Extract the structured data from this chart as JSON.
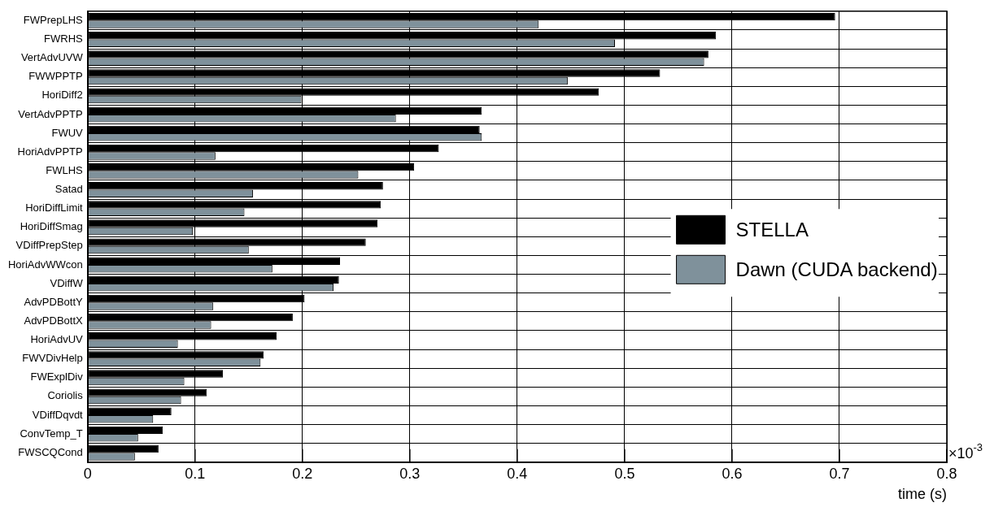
{
  "chart_data": {
    "type": "bar",
    "orientation": "horizontal",
    "xlabel": "time (s)",
    "annotations": [
      "×10$^{-3}$"
    ],
    "categories": [
      "FWPrepLHS",
      "FWRHS",
      "VertAdvUVW",
      "FWWPPTP",
      "HoriDiff2",
      "VertAdvPPTP",
      "FWUV",
      "HoriAdvPPTP",
      "FWLHS",
      "Satad",
      "HoriDiffLimit",
      "HoriDiffSmag",
      "VDiffPrepStep",
      "HoriAdvWWcon",
      "VDiffW",
      "AdvPDBottY",
      "AdvPDBottX",
      "HoriAdvUV",
      "FWVDivHelp",
      "FWExplDiv",
      "Coriolis",
      "VDiffDqvdt",
      "ConvTemp_T",
      "FWSCQCond"
    ],
    "series": [
      {
        "name": "STELLA",
        "color": "#000000",
        "values": [
          0.696,
          0.585,
          0.578,
          0.533,
          0.476,
          0.367,
          0.365,
          0.327,
          0.304,
          0.275,
          0.273,
          0.27,
          0.259,
          0.235,
          0.234,
          0.202,
          0.191,
          0.176,
          0.164,
          0.126,
          0.111,
          0.078,
          0.07,
          0.066
        ]
      },
      {
        "name": "Dawn (CUDA backend)",
        "color": "#7f919b",
        "values": [
          0.42,
          0.491,
          0.574,
          0.447,
          0.199,
          0.287,
          0.367,
          0.119,
          0.252,
          0.154,
          0.146,
          0.098,
          0.15,
          0.172,
          0.229,
          0.117,
          0.115,
          0.084,
          0.161,
          0.09,
          0.087,
          0.061,
          0.047,
          0.044
        ]
      }
    ],
    "xlim": [
      0,
      0.8
    ],
    "xticks": [
      0,
      0.1,
      0.2,
      0.3,
      0.4,
      0.5,
      0.6,
      0.7,
      0.8
    ],
    "grid": true,
    "legend": "right"
  }
}
